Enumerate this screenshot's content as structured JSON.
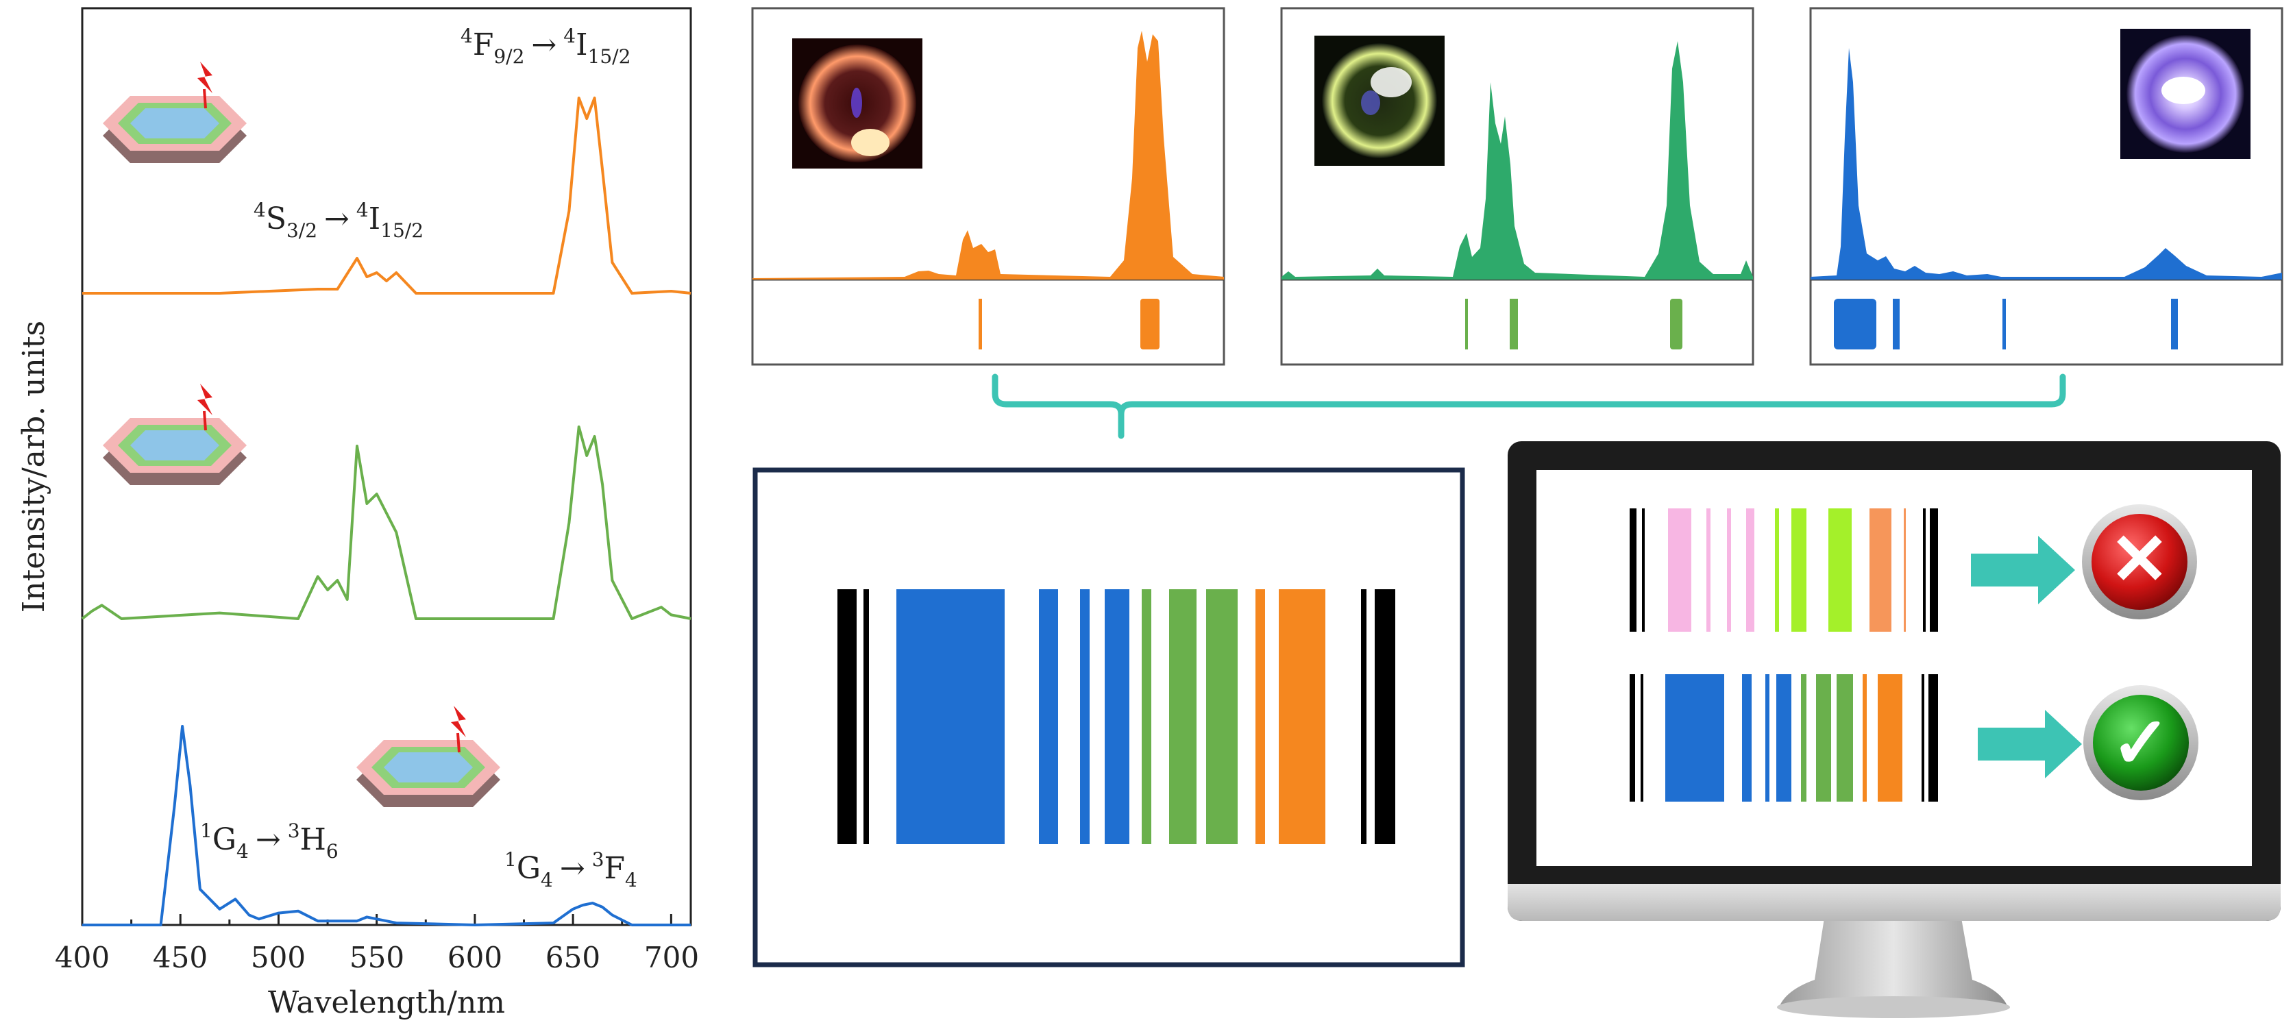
{
  "left_plot": {
    "ylabel": "Intensity/arb. units",
    "xlabel": "Wavelength/nm",
    "xticks": [
      "400",
      "450",
      "500",
      "550",
      "600",
      "650",
      "700"
    ],
    "transitions": {
      "orange_red": {
        "a": "4",
        "b": "F",
        "c": "9/2",
        "arrow": "→",
        "d": "4",
        "e": "I",
        "f": "15/2"
      },
      "orange_green": {
        "a": "4",
        "b": "S",
        "c": "3/2",
        "arrow": "→",
        "d": "4",
        "e": "I",
        "f": "15/2"
      },
      "blue_main": {
        "a": "1",
        "b": "G",
        "c": "4",
        "arrow": "→",
        "d": "3",
        "e": "H",
        "f": "6"
      },
      "blue_red": {
        "a": "1",
        "b": "G",
        "c": "4",
        "arrow": "→",
        "d": "3",
        "e": "F",
        "f": "4"
      }
    }
  },
  "chart_data": {
    "type": "line",
    "xlabel": "Wavelength/nm",
    "ylabel": "Intensity/arb. units",
    "xlim": [
      400,
      710
    ],
    "stacked": true,
    "series": [
      {
        "color": "#f5871f",
        "x": [
          400,
          470,
          520,
          530,
          540,
          545,
          550,
          555,
          560,
          570,
          600,
          640,
          648,
          653,
          657,
          661,
          665,
          670,
          680,
          700,
          710
        ],
        "y": [
          0.0,
          0.0,
          0.02,
          0.02,
          0.17,
          0.08,
          0.1,
          0.06,
          0.1,
          0.0,
          0.0,
          0.0,
          0.4,
          0.95,
          0.85,
          0.95,
          0.6,
          0.15,
          0.0,
          0.01,
          0.0
        ]
      },
      {
        "color": "#6ab04c",
        "x": [
          400,
          405,
          410,
          420,
          470,
          510,
          520,
          525,
          530,
          535,
          540,
          545,
          550,
          555,
          560,
          570,
          600,
          640,
          648,
          653,
          657,
          661,
          665,
          670,
          680,
          695,
          700,
          710
        ],
        "y": [
          0.0,
          0.04,
          0.07,
          0.0,
          0.03,
          0.0,
          0.22,
          0.15,
          0.2,
          0.1,
          0.9,
          0.6,
          0.65,
          0.55,
          0.45,
          0.0,
          0.0,
          0.0,
          0.5,
          1.0,
          0.85,
          0.95,
          0.7,
          0.2,
          0.0,
          0.06,
          0.02,
          0.0
        ]
      },
      {
        "color": "#1f6fd1",
        "x": [
          400,
          440,
          447,
          451,
          455,
          460,
          470,
          478,
          485,
          490,
          500,
          510,
          520,
          540,
          545,
          560,
          600,
          640,
          650,
          655,
          660,
          665,
          670,
          680,
          710
        ],
        "y": [
          0.0,
          0.0,
          0.6,
          1.0,
          0.7,
          0.18,
          0.08,
          0.13,
          0.05,
          0.03,
          0.06,
          0.07,
          0.02,
          0.02,
          0.04,
          0.01,
          0.0,
          0.01,
          0.08,
          0.1,
          0.11,
          0.09,
          0.05,
          0.0,
          0.0
        ]
      }
    ]
  },
  "spectra_panels": [
    {
      "color": "#f5871f"
    },
    {
      "color": "#2eaa6b"
    },
    {
      "color": "#1f6fd1"
    }
  ],
  "barcodes": {
    "main": "spectral barcode",
    "rejected_result": "✕",
    "accepted_result": "✓"
  },
  "colors": {
    "orange": "#f5871f",
    "green": "#6ab04c",
    "teal_green": "#2eaa6b",
    "blue": "#1f6fd1",
    "teal_bracket": "#3dc4b4",
    "navy_frame": "#1b2b4a",
    "pink": "#f7b6e3",
    "lime": "#a4f02a",
    "light_orange": "#f6965a"
  }
}
